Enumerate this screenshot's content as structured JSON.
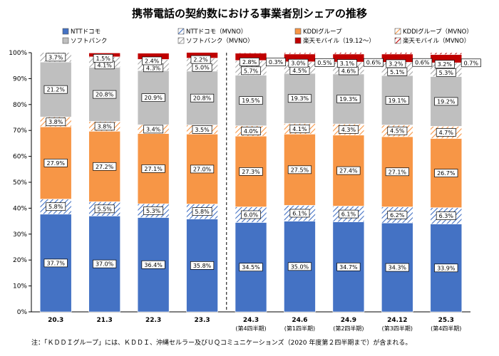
{
  "chart_data": {
    "type": "bar",
    "stacked": true,
    "title": "携帯電話の契約数における事業者別シェアの推移",
    "categories": [
      "20.3",
      "21.3",
      "22.3",
      "23.3",
      "24.3",
      "24.6",
      "24.9",
      "24.12",
      "25.3"
    ],
    "category_sublabels": [
      "",
      "",
      "",
      "",
      "(第4四半期)",
      "(第1四半期)",
      "(第2四半期)",
      "(第3四半期)",
      "(第4四半期)"
    ],
    "ylim": [
      0,
      100
    ],
    "yticks": [
      "0%",
      "10%",
      "20%",
      "30%",
      "40%",
      "50%",
      "60%",
      "70%",
      "80%",
      "90%",
      "100%"
    ],
    "grid": false,
    "legend_position": "top",
    "series": [
      {
        "name": "NTTドコモ",
        "color": "#4472c4",
        "pattern": "solid",
        "values": [
          37.7,
          37.0,
          36.4,
          35.8,
          34.5,
          35.0,
          34.7,
          34.3,
          33.9
        ],
        "labels": [
          "37.7%",
          "37.0%",
          "36.4%",
          "35.8%",
          "34.5%",
          "35.0%",
          "34.7%",
          "34.3%",
          "33.9%"
        ]
      },
      {
        "name": "NTTドコモ（MVNO）",
        "color": "#4472c4",
        "pattern": "hatch",
        "values": [
          5.8,
          5.5,
          5.3,
          5.8,
          6.0,
          6.1,
          6.1,
          6.2,
          6.3
        ],
        "labels": [
          "5.8%",
          "5.5%",
          "5.3%",
          "5.8%",
          "6.0%",
          "6.1%",
          "6.1%",
          "6.2%",
          "6.3%"
        ]
      },
      {
        "name": "KDDIグループ",
        "color": "#f79646",
        "pattern": "solid",
        "values": [
          27.9,
          27.2,
          27.1,
          27.0,
          27.3,
          27.5,
          27.4,
          27.1,
          26.7
        ],
        "labels": [
          "27.9%",
          "27.2%",
          "27.1%",
          "27.0%",
          "27.3%",
          "27.5%",
          "27.4%",
          "27.1%",
          "26.7%"
        ]
      },
      {
        "name": "KDDIグループ（MVNO）",
        "color": "#f79646",
        "pattern": "hatch",
        "values": [
          3.8,
          3.8,
          3.4,
          3.5,
          4.0,
          4.1,
          4.3,
          4.5,
          4.7
        ],
        "labels": [
          "3.8%",
          "3.8%",
          "3.4%",
          "3.5%",
          "4.0%",
          "4.1%",
          "4.3%",
          "4.5%",
          "4.7%"
        ]
      },
      {
        "name": "ソフトバンク",
        "color": "#bfbfbf",
        "pattern": "solid",
        "values": [
          21.2,
          20.8,
          20.9,
          20.8,
          19.5,
          19.3,
          19.3,
          19.1,
          19.2
        ],
        "labels": [
          "21.2%",
          "20.8%",
          "20.9%",
          "20.8%",
          "19.5%",
          "19.3%",
          "19.3%",
          "19.1%",
          "19.2%"
        ]
      },
      {
        "name": "ソフトバンク（MVNO）",
        "color": "#bfbfbf",
        "pattern": "hatch",
        "values": [
          3.7,
          4.1,
          4.3,
          5.0,
          5.7,
          4.5,
          4.6,
          5.1,
          5.3
        ],
        "labels": [
          "3.7%",
          "4.1%",
          "4.3%",
          "5.0%",
          "5.7%",
          "4.5%",
          "4.6%",
          "5.1%",
          "5.3%"
        ]
      },
      {
        "name": "楽天モバイル（19.12～）",
        "color": "#c00000",
        "pattern": "solid",
        "values": [
          0,
          1.5,
          2.4,
          2.2,
          2.8,
          3.0,
          3.1,
          3.2,
          3.2
        ],
        "labels": [
          "",
          "1.5%",
          "2.4%",
          "2.2%",
          "2.8%",
          "3.0%",
          "3.1%",
          "3.2%",
          "3.2%"
        ]
      },
      {
        "name": "楽天モバイル（MVNO）",
        "color": "#c00000",
        "pattern": "hatch",
        "values": [
          0,
          0,
          0,
          0,
          0.3,
          0.5,
          0.6,
          0.6,
          0.7
        ],
        "labels": [
          "",
          "",
          "",
          "",
          "0.3%",
          "0.5%",
          "0.6%",
          "0.6%",
          "0.7%"
        ]
      }
    ],
    "divider_after_category": "23.3"
  },
  "footnote": "注：「ＫＤＤＩグループ」には、ＫＤＤＩ、沖縄セルラー及びＵＱコミュニケーションズ（2020 年度第２四半期まで）が含まれる。"
}
